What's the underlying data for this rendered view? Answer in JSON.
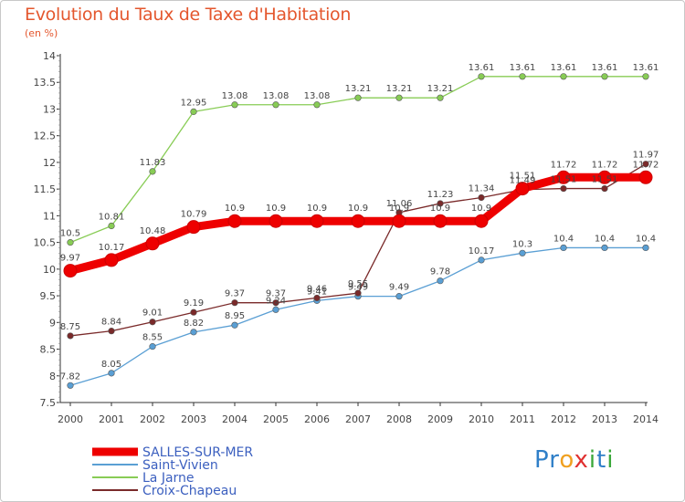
{
  "title": "Evolution du Taux de Taxe d'Habitation",
  "subtitle": "(en %)",
  "logo": {
    "text": "Proxiti",
    "letters": [
      {
        "ch": "P",
        "color": "#2f7fc8"
      },
      {
        "ch": "r",
        "color": "#2f7fc8"
      },
      {
        "ch": "o",
        "color": "#f0a020"
      },
      {
        "ch": "x",
        "color": "#e03030"
      },
      {
        "ch": "i",
        "color": "#3aa83a"
      },
      {
        "ch": "t",
        "color": "#2f7fc8"
      },
      {
        "ch": "i",
        "color": "#3aa83a"
      }
    ]
  },
  "chart_data": {
    "type": "line",
    "title": "Evolution du Taux de Taxe d'Habitation",
    "subtitle": "(en %)",
    "xlabel": "",
    "ylabel": "",
    "x": [
      "2000",
      "2001",
      "2002",
      "2003",
      "2004",
      "2005",
      "2006",
      "2007",
      "2008",
      "2009",
      "2010",
      "2011",
      "2012",
      "2013",
      "2014"
    ],
    "ylim": [
      7.5,
      14
    ],
    "yticks": [
      "7.5",
      "8",
      "8.5",
      "9",
      "9.5",
      "10",
      "10.5",
      "11",
      "11.5",
      "12",
      "12.5",
      "13",
      "13.5",
      "14"
    ],
    "grid": false,
    "legend_position": "bottom-left",
    "series": [
      {
        "name": "SALLES-SUR-MER",
        "color": "#ee0000",
        "bold": true,
        "values": [
          9.97,
          10.17,
          10.48,
          10.79,
          10.9,
          10.9,
          10.9,
          10.9,
          10.9,
          10.9,
          10.9,
          11.51,
          11.72,
          11.72,
          11.72
        ],
        "labels": [
          "9.97",
          "10.17",
          "10.48",
          "10.79",
          "10.9",
          "10.9",
          "10.9",
          "10.9",
          "10.9",
          "10.9",
          "10.9",
          "11.51",
          "11.72",
          "11.72",
          "11.72"
        ]
      },
      {
        "name": "Saint-Vivien",
        "color": "#5a9fd4",
        "bold": false,
        "values": [
          7.82,
          8.05,
          8.55,
          8.82,
          8.95,
          9.24,
          9.41,
          9.49,
          9.49,
          9.78,
          10.17,
          10.3,
          10.4,
          10.4,
          10.4
        ],
        "labels": [
          "7.82",
          "8.05",
          "8.55",
          "8.82",
          "8.95",
          "9.24",
          "9.41",
          "9.49",
          "9.49",
          "9.78",
          "10.17",
          "10.3",
          "10.4",
          "10.4",
          "10.4"
        ]
      },
      {
        "name": "La Jarne",
        "color": "#88cc55",
        "bold": false,
        "values": [
          10.5,
          10.81,
          11.83,
          12.95,
          13.08,
          13.08,
          13.08,
          13.21,
          13.21,
          13.21,
          13.61,
          13.61,
          13.61,
          13.61,
          13.61
        ],
        "labels": [
          "10.5",
          "10.81",
          "11.83",
          "12.95",
          "13.08",
          "13.08",
          "13.08",
          "13.21",
          "13.21",
          "13.21",
          "13.61",
          "13.61",
          "13.61",
          "13.61",
          "13.61"
        ]
      },
      {
        "name": "Croix-Chapeau",
        "color": "#7a2a2a",
        "bold": false,
        "values": [
          8.75,
          8.84,
          9.01,
          9.19,
          9.37,
          9.37,
          9.46,
          9.55,
          11.06,
          11.23,
          11.34,
          11.49,
          11.51,
          11.51,
          11.97
        ],
        "labels": [
          "8.75",
          "8.84",
          "9.01",
          "9.19",
          "9.37",
          "9.37",
          "9.46",
          "9.55",
          "11.06",
          "11.23",
          "11.34",
          "11.49",
          "11.51",
          "11.51",
          "11.97"
        ]
      }
    ]
  }
}
